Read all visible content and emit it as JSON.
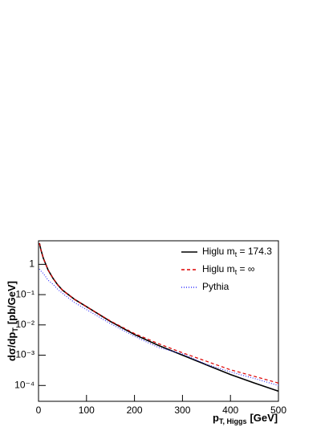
{
  "chart_data": {
    "type": "line",
    "x_label": {
      "main": "p",
      "sub": "T, Higgs",
      "unit": "[GeV]"
    },
    "y_label": {
      "main": "dσ/dp",
      "sub": "T",
      "unit": "[pb/GeV]"
    },
    "log_y": true,
    "xlim": [
      0,
      500
    ],
    "xticks": [
      0,
      100,
      200,
      300,
      400,
      500
    ],
    "ylim": [
      3e-05,
      6
    ],
    "yticks": [
      {
        "value": 0.0001,
        "label": "10⁻⁴"
      },
      {
        "value": 0.001,
        "label": "10⁻³"
      },
      {
        "value": 0.01,
        "label": "10⁻²"
      },
      {
        "value": 0.1,
        "label": "10⁻¹"
      },
      1
    ],
    "x": [
      2,
      5,
      10,
      20,
      30,
      40,
      50,
      75,
      100,
      150,
      200,
      250,
      300,
      350,
      400,
      450,
      500
    ],
    "series": [
      {
        "name": {
          "main": "Higlu m",
          "sub": "t",
          "rest": " = 174.3"
        },
        "color": "#000000",
        "dash": "none",
        "values": [
          5,
          3,
          1.6,
          0.65,
          0.35,
          0.21,
          0.14,
          0.07,
          0.04,
          0.013,
          0.0048,
          0.0021,
          0.001,
          0.00048,
          0.00023,
          0.00012,
          6.5e-05
        ]
      },
      {
        "name": {
          "main": "Higlu m",
          "sub": "t",
          "rest": " = ∞"
        },
        "color": "#dd0000",
        "dash": "4 3",
        "values": [
          5,
          3,
          1.6,
          0.65,
          0.35,
          0.21,
          0.14,
          0.07,
          0.04,
          0.0135,
          0.0052,
          0.0024,
          0.0012,
          0.00063,
          0.00033,
          0.0002,
          0.00012
        ]
      },
      {
        "name": {
          "main": "Pythia"
        },
        "color": "#3333ff",
        "dash": "1 2",
        "values": [
          0.7,
          0.6,
          0.5,
          0.3,
          0.22,
          0.15,
          0.11,
          0.055,
          0.032,
          0.011,
          0.0042,
          0.0018,
          0.0011,
          0.0005,
          0.00028,
          0.00017,
          0.0001
        ]
      }
    ]
  }
}
